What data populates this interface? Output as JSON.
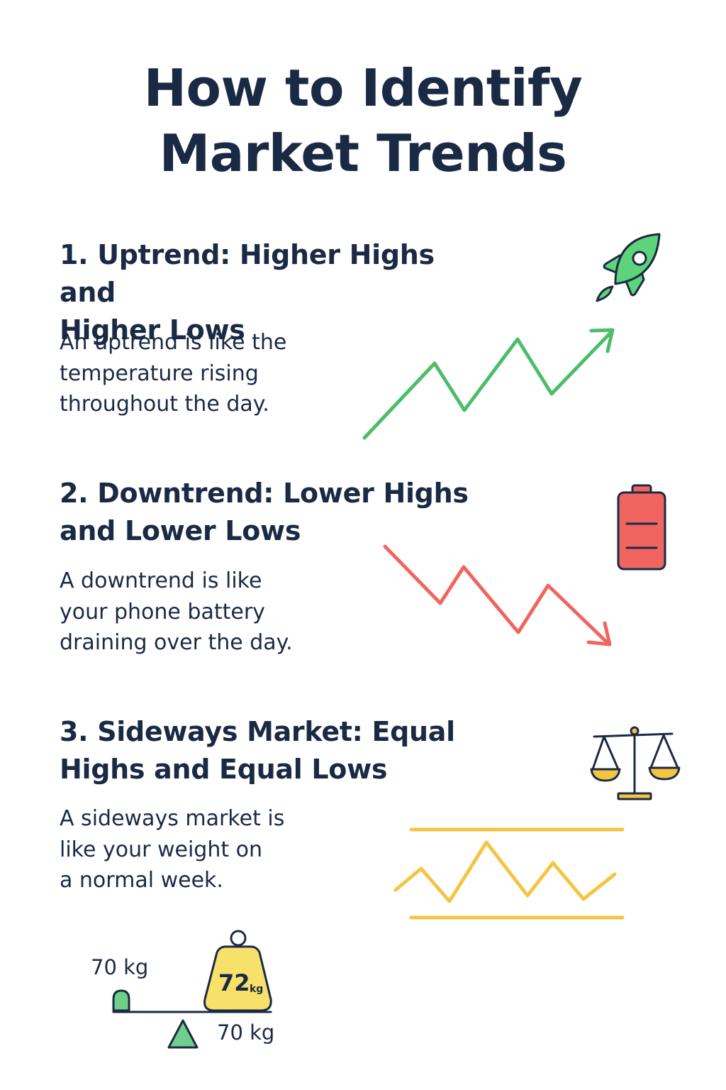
{
  "title": {
    "line1": "How to Identify",
    "line2": "Market Trends"
  },
  "sections": [
    {
      "heading_line1": "1. Uptrend: Higher Highs and",
      "heading_line2": "Higher Lows",
      "desc_line1": "An uptrend is like the",
      "desc_line2": "temperature rising",
      "desc_line3": "throughout the day.",
      "icon": "rocket-icon",
      "color": "#4dbd6a"
    },
    {
      "heading_line1": "2. Downtrend: Lower Highs",
      "heading_line2": "and Lower Lows",
      "desc_line1": "A downtrend is like",
      "desc_line2": "your phone battery",
      "desc_line3": "draining over the day.",
      "icon": "battery-low-icon",
      "color": "#f06560"
    },
    {
      "heading_line1": "3. Sideways Market: Equal",
      "heading_line2": "Highs and Equal Lows",
      "desc_line1": "A sideways market is",
      "desc_line2": "like your weight on",
      "desc_line3": "a normal week.",
      "icon": "balance-scale-icon",
      "color": "#f4c542"
    }
  ],
  "weight_scale": {
    "left_label": "70 kg",
    "bottom_label": "70 kg",
    "weight_value": "72",
    "weight_unit": "kg"
  },
  "colors": {
    "text": "#1b2a44",
    "green": "#4dbd6a",
    "red": "#f06560",
    "yellow": "#f4c542"
  }
}
